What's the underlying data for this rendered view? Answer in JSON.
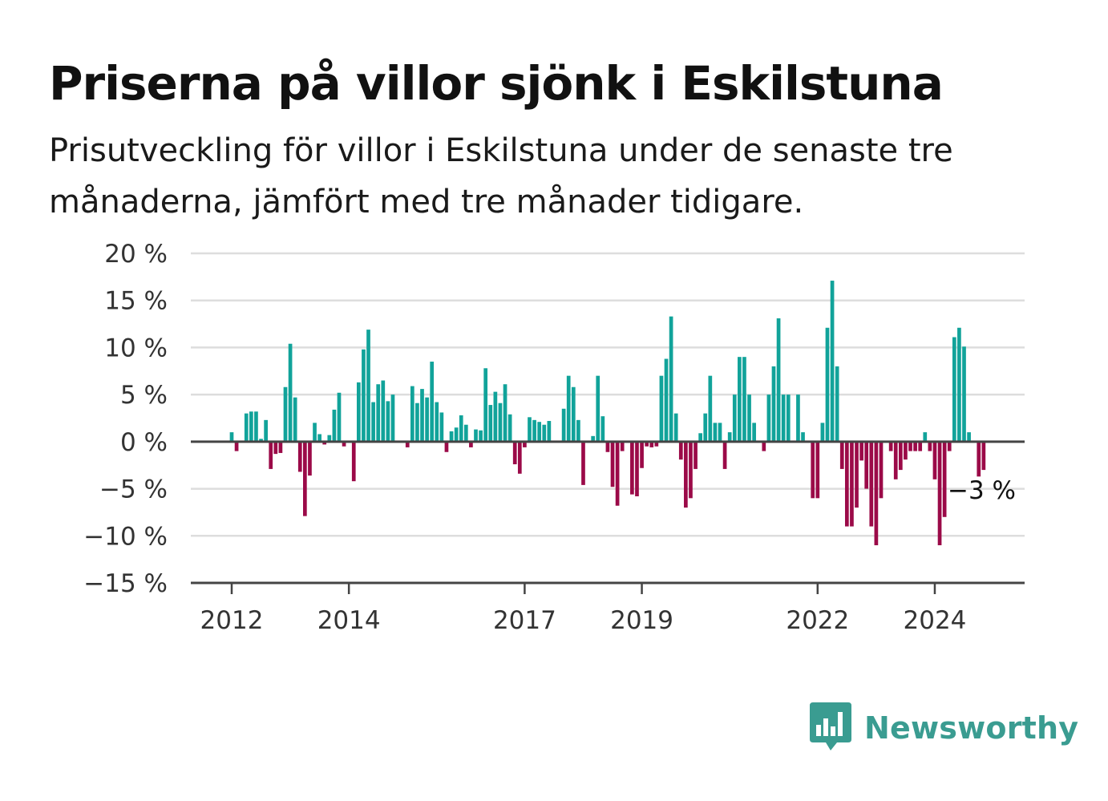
{
  "header": {
    "title": "Priserna på villor sjönk i Eskilstuna",
    "subtitle": "Prisutveckling för villor i Eskilstuna under de senaste tre månaderna, jämfört med tre månader tidigare."
  },
  "brand": {
    "name": "Newsworthy",
    "icon": "newsworthy-logo-icon"
  },
  "colors": {
    "positive": "#11a39a",
    "negative": "#9b0a48",
    "grid": "#dddddd",
    "axis": "#444444"
  },
  "chart_data": {
    "type": "bar",
    "title": "Priserna på villor sjönk i Eskilstuna",
    "subtitle": "Prisutveckling för villor i Eskilstuna under de senaste tre månaderna, jämfört med tre månader tidigare.",
    "x_unit": "month",
    "x_start": "2012-01",
    "x_end": "2024-12",
    "ylim": [
      -15,
      20
    ],
    "yticks": [
      20,
      15,
      10,
      5,
      0,
      -5,
      -10,
      -15
    ],
    "ytick_labels": [
      "20 %",
      "15 %",
      "10 %",
      "5 %",
      "0 %",
      "−5 %",
      "−10 %",
      "−15 %"
    ],
    "xticks": [
      "2012",
      "2014",
      "2017",
      "2019",
      "2022",
      "2024"
    ],
    "grid": true,
    "end_label": "−3 %",
    "series": [
      {
        "values": [
          1,
          -1,
          0,
          3,
          3.2,
          3.2,
          0.3,
          2.3,
          -2.9,
          -1.3,
          -1.2,
          5.8,
          10.4,
          4.7,
          -3.2,
          -7.9,
          -3.6,
          2.0,
          0.8,
          -0.3,
          0.7,
          3.4,
          5.2,
          -0.5,
          0,
          -4.2,
          6.3,
          9.8,
          11.9,
          4.2,
          6.1,
          6.5,
          4.3,
          5.0,
          0,
          0,
          -0.6,
          5.9,
          4.1,
          5.6,
          4.7,
          8.5,
          4.2,
          3.1,
          -1.1,
          1.1,
          1.5,
          2.8,
          1.8,
          -0.6,
          1.3,
          1.2,
          7.8,
          3.9,
          5.3,
          4.1,
          6.1,
          2.9,
          -2.4,
          -3.4,
          -0.6,
          2.6,
          2.3,
          2.1,
          1.8,
          2.2,
          0,
          0,
          3.5,
          7.0,
          5.8,
          2.3,
          -4.6,
          0,
          0.6,
          7.0,
          2.7,
          -1.1,
          -4.8,
          -6.8,
          -1.0,
          0,
          -5.6,
          -5.8,
          -2.8,
          -0.5,
          -0.6,
          -0.5,
          7.0,
          8.8,
          13.3,
          3.0,
          -1.9,
          -7.0,
          -6.0,
          -2.9,
          0.9,
          3.0,
          7.0,
          2.0,
          2.0,
          -2.9,
          1.0,
          5.0,
          9.0,
          9.0,
          5.0,
          2.0,
          0,
          -1.0,
          5.0,
          8.0,
          13.1,
          5.0,
          5.0,
          0,
          5.0,
          1.0,
          0,
          -6.0,
          -6.0,
          2.0,
          12.1,
          17.1,
          8.0,
          -2.9,
          -9.0,
          -9.0,
          -7.0,
          -2.0,
          -5.0,
          -9.0,
          -11.0,
          -6.0,
          0,
          -1.0,
          -4.0,
          -3.0,
          -1.9,
          -1.0,
          -1.0,
          -1.0,
          1.0,
          -1.0,
          -4.0,
          -11.0,
          -8.0,
          -1.0,
          11.1,
          12.1,
          10.1,
          1.0,
          0,
          -3.7,
          -3.0
        ]
      }
    ]
  }
}
